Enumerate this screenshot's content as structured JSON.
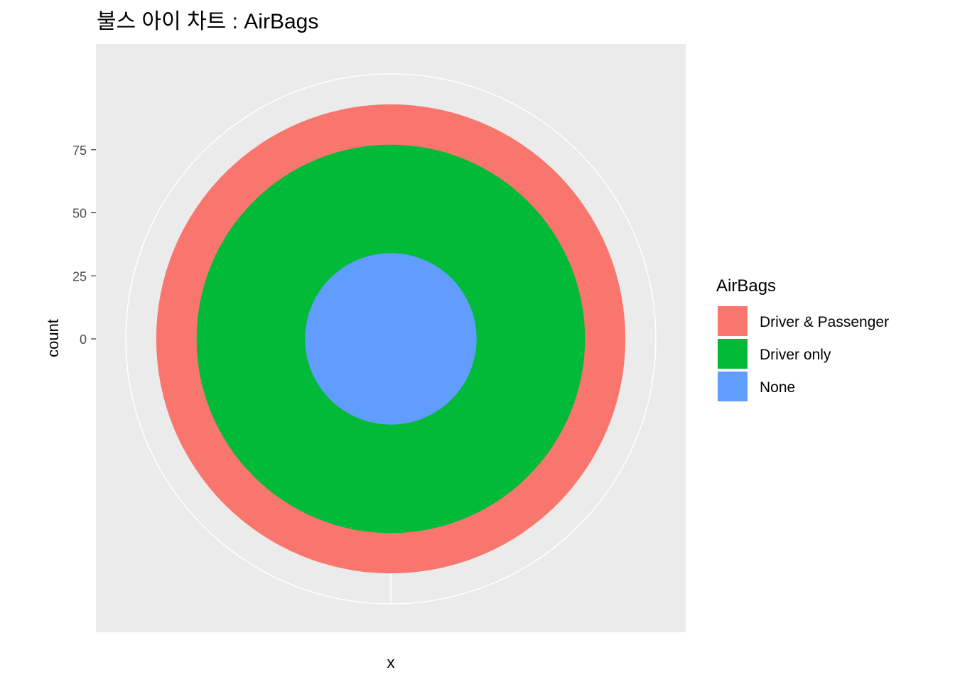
{
  "chart_data": {
    "type": "pie",
    "subtype": "bullseye",
    "title": "불스 아이 차트 : AirBags",
    "xlabel": "x",
    "ylabel": "count",
    "y_ticks": [
      0,
      25,
      50,
      75
    ],
    "legend": {
      "title": "AirBags",
      "position": "right"
    },
    "series": [
      {
        "name": "None",
        "value": 34,
        "color": "#619CFF"
      },
      {
        "name": "Driver only",
        "value": 43,
        "color": "#00BA38"
      },
      {
        "name": "Driver & Passenger",
        "value": 16,
        "color": "#F8766D"
      }
    ],
    "legend_order": [
      "Driver & Passenger",
      "Driver only",
      "None"
    ],
    "panel_background": "#EBEBEB",
    "grid_color": "#FFFFFF"
  }
}
